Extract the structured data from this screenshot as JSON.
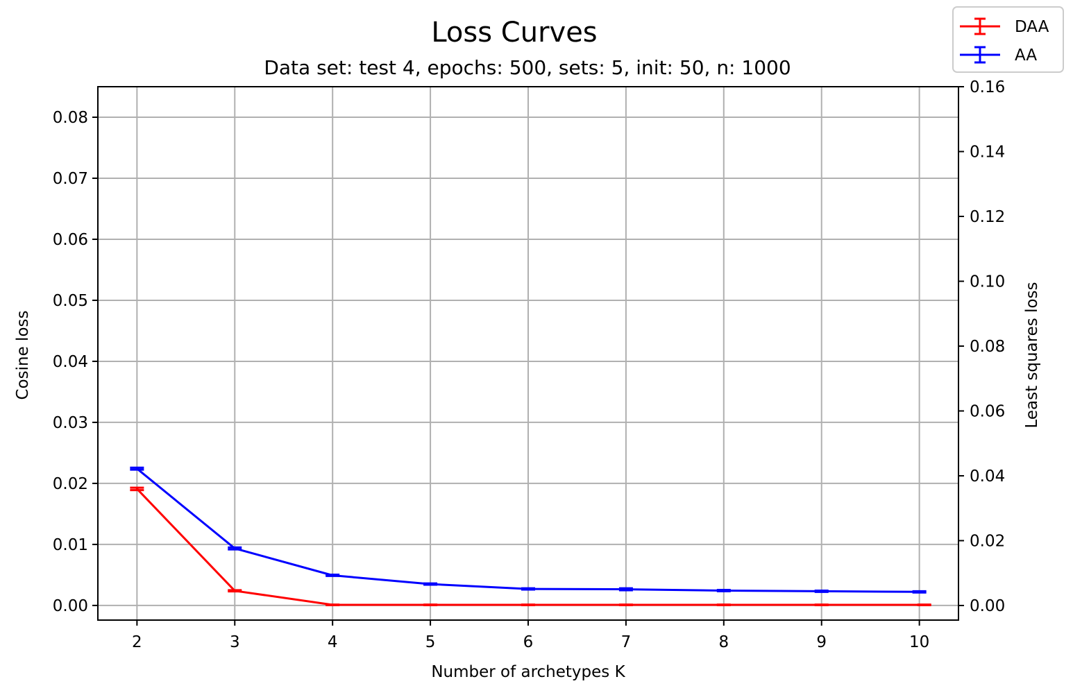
{
  "chart_data": {
    "type": "line",
    "title": "Loss Curves",
    "subtitle": "Data set: test 4, epochs: 500, sets: 5, init: 50, n: 1000",
    "xlabel": "Number of archetypes K",
    "ylabel_left": "Cosine loss",
    "ylabel_right": "Least squares loss",
    "x": [
      2,
      3,
      4,
      5,
      6,
      7,
      8,
      9,
      10
    ],
    "xlim": [
      1.6,
      10.4
    ],
    "ylim_left": [
      -0.0024,
      0.085
    ],
    "ylim_right": [
      -0.0045,
      0.16
    ],
    "xticks": [
      "2",
      "3",
      "4",
      "5",
      "6",
      "7",
      "8",
      "9",
      "10"
    ],
    "yticks_left": [
      "0.00",
      "0.01",
      "0.02",
      "0.03",
      "0.04",
      "0.05",
      "0.06",
      "0.07",
      "0.08"
    ],
    "yticks_right": [
      "0.00",
      "0.02",
      "0.04",
      "0.06",
      "0.08",
      "0.10",
      "0.12",
      "0.14",
      "0.16"
    ],
    "grid": true,
    "legend_position": "top-right",
    "series": [
      {
        "name": "DAA",
        "color": "#ff0000",
        "axis": "left",
        "x_offset": 0.05,
        "values": [
          0.0191,
          0.0024,
          0.0001,
          0.0001,
          0.0001,
          0.0001,
          0.0001,
          0.0001,
          0.0001
        ],
        "errors": [
          0.0002,
          0.0001,
          5e-05,
          5e-05,
          5e-05,
          5e-05,
          5e-05,
          5e-05,
          5e-05
        ]
      },
      {
        "name": "AA",
        "color": "#0000ff",
        "axis": "right",
        "x_offset": 0.0,
        "values": [
          0.0422,
          0.0176,
          0.0093,
          0.0066,
          0.0051,
          0.005,
          0.0046,
          0.0044,
          0.0042
        ],
        "errors": [
          0.0003,
          0.0003,
          0.0002,
          0.0002,
          0.0002,
          0.0003,
          0.0002,
          0.0002,
          0.0002
        ]
      }
    ]
  }
}
